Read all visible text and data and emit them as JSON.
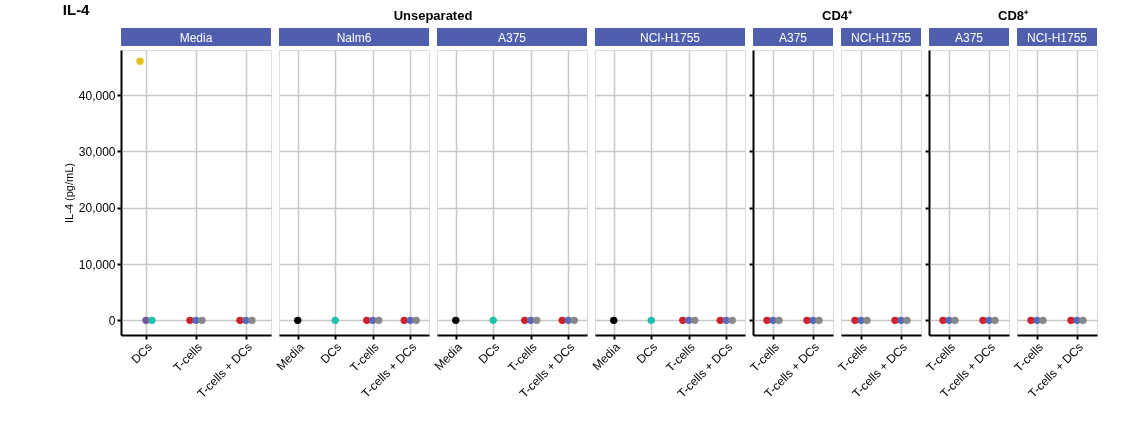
{
  "chart_data": [
    {
      "type": "scatter",
      "title": "Media",
      "annotations": [
        "IL-4",
        "Unseparated"
      ],
      "ylabel": "IL-4 (pg/mL)",
      "categories": [
        "DCs",
        "T-cells",
        "T-cells + DCs"
      ],
      "ylim": [
        -2600,
        48000
      ],
      "yticks": [
        0,
        {
          "value": 10000,
          "label": "10,000"
        },
        {
          "value": 20000,
          "label": "20,000"
        },
        {
          "value": 30000,
          "label": "30,000"
        },
        {
          "value": 40000,
          "label": "40,000"
        }
      ],
      "grid": true,
      "legend": false,
      "marker": "circle",
      "series": [
        {
          "color": "#e6c020",
          "values": [
            46000,
            null,
            null
          ]
        },
        {
          "color": "#7b52a0",
          "values": [
            0,
            null,
            null
          ]
        },
        {
          "color": "#20c0b0",
          "values": [
            0,
            null,
            null
          ]
        },
        {
          "color": "#d0202a",
          "values": [
            null,
            0,
            0
          ]
        },
        {
          "color": "#5a6ab8",
          "values": [
            null,
            0,
            0
          ]
        },
        {
          "color": "#888888",
          "values": [
            null,
            0,
            0
          ]
        }
      ]
    },
    {
      "type": "scatter",
      "title": "Nalm6",
      "categories": [
        "Media",
        "DCs",
        "T-cells",
        "T-cells + DCs"
      ],
      "ylim": [
        -2600,
        48000
      ],
      "yticks": [
        0,
        10000,
        20000,
        30000,
        40000
      ],
      "tick_labels": "x",
      "grid": true,
      "marker": "circle",
      "series": [
        {
          "color": "#000000",
          "values": [
            0,
            null,
            null,
            null
          ]
        },
        {
          "color": "#20c0b0",
          "values": [
            null,
            0,
            null,
            null
          ]
        },
        {
          "color": "#d0202a",
          "values": [
            null,
            null,
            0,
            0
          ]
        },
        {
          "color": "#5a6ab8",
          "values": [
            null,
            null,
            0,
            0
          ]
        },
        {
          "color": "#888888",
          "values": [
            null,
            null,
            0,
            0
          ]
        }
      ]
    },
    {
      "type": "scatter",
      "title": "A375",
      "categories": [
        "Media",
        "DCs",
        "T-cells",
        "T-cells + DCs"
      ],
      "ylim": [
        -2600,
        48000
      ],
      "yticks": [
        0,
        10000,
        20000,
        30000,
        40000
      ],
      "tick_labels": "x",
      "grid": true,
      "marker": "circle",
      "series": [
        {
          "color": "#000000",
          "values": [
            0,
            null,
            null,
            null
          ]
        },
        {
          "color": "#20c0b0",
          "values": [
            null,
            0,
            null,
            null
          ]
        },
        {
          "color": "#d0202a",
          "values": [
            null,
            null,
            0,
            0
          ]
        },
        {
          "color": "#5a6ab8",
          "values": [
            null,
            null,
            0,
            0
          ]
        },
        {
          "color": "#888888",
          "values": [
            null,
            null,
            0,
            0
          ]
        }
      ]
    },
    {
      "type": "scatter",
      "title": "NCI-H1755",
      "categories": [
        "Media",
        "DCs",
        "T-cells",
        "T-cells + DCs"
      ],
      "ylim": [
        -2600,
        48000
      ],
      "yticks": [
        0,
        10000,
        20000,
        30000,
        40000
      ],
      "tick_labels": "x",
      "grid": true,
      "marker": "circle",
      "series": [
        {
          "color": "#000000",
          "values": [
            0,
            null,
            null,
            null
          ]
        },
        {
          "color": "#20c0b0",
          "values": [
            null,
            0,
            null,
            null
          ]
        },
        {
          "color": "#d0202a",
          "values": [
            null,
            null,
            0,
            0
          ]
        },
        {
          "color": "#5a6ab8",
          "values": [
            null,
            null,
            0,
            0
          ]
        },
        {
          "color": "#888888",
          "values": [
            null,
            null,
            0,
            0
          ]
        }
      ]
    },
    {
      "type": "scatter",
      "title": "A375",
      "annotations": [
        "CD4⁺"
      ],
      "categories": [
        "T-cells",
        "T-cells + DCs"
      ],
      "ylim": [
        -2600,
        48000
      ],
      "yticks": [
        0,
        10000,
        20000,
        30000,
        40000
      ],
      "tick_labels": "x",
      "grid": true,
      "marker": "circle",
      "series": [
        {
          "color": "#d0202a",
          "values": [
            0,
            0
          ]
        },
        {
          "color": "#5a6ab8",
          "values": [
            0,
            0
          ]
        },
        {
          "color": "#888888",
          "values": [
            0,
            0
          ]
        }
      ]
    },
    {
      "type": "scatter",
      "title": "NCI-H1755",
      "categories": [
        "T-cells",
        "T-cells + DCs"
      ],
      "ylim": [
        -2600,
        48000
      ],
      "yticks": [
        0,
        10000,
        20000,
        30000,
        40000
      ],
      "tick_labels": "x",
      "grid": true,
      "marker": "circle",
      "series": [
        {
          "color": "#d0202a",
          "values": [
            0,
            0
          ]
        },
        {
          "color": "#5a6ab8",
          "values": [
            0,
            0
          ]
        },
        {
          "color": "#888888",
          "values": [
            0,
            0
          ]
        }
      ]
    },
    {
      "type": "scatter",
      "title": "A375",
      "annotations": [
        "CD8⁺"
      ],
      "categories": [
        "T-cells",
        "T-cells + DCs"
      ],
      "ylim": [
        -2600,
        48000
      ],
      "yticks": [
        0,
        10000,
        20000,
        30000,
        40000
      ],
      "tick_labels": "x",
      "grid": true,
      "marker": "circle",
      "series": [
        {
          "color": "#d0202a",
          "values": [
            0,
            0
          ]
        },
        {
          "color": "#5a6ab8",
          "values": [
            0,
            0
          ]
        },
        {
          "color": "#888888",
          "values": [
            0,
            0
          ]
        }
      ]
    },
    {
      "type": "scatter",
      "title": "NCI-H1755",
      "categories": [
        "T-cells",
        "T-cells + DCs"
      ],
      "ylim": [
        -2600,
        48000
      ],
      "yticks": [
        0,
        10000,
        20000,
        30000,
        40000
      ],
      "tick_labels": "x",
      "grid": true,
      "marker": "circle",
      "series": [
        {
          "color": "#d0202a",
          "values": [
            0,
            0
          ]
        },
        {
          "color": "#5a6ab8",
          "values": [
            0,
            0
          ]
        },
        {
          "color": "#888888",
          "values": [
            0,
            0
          ]
        }
      ]
    }
  ]
}
